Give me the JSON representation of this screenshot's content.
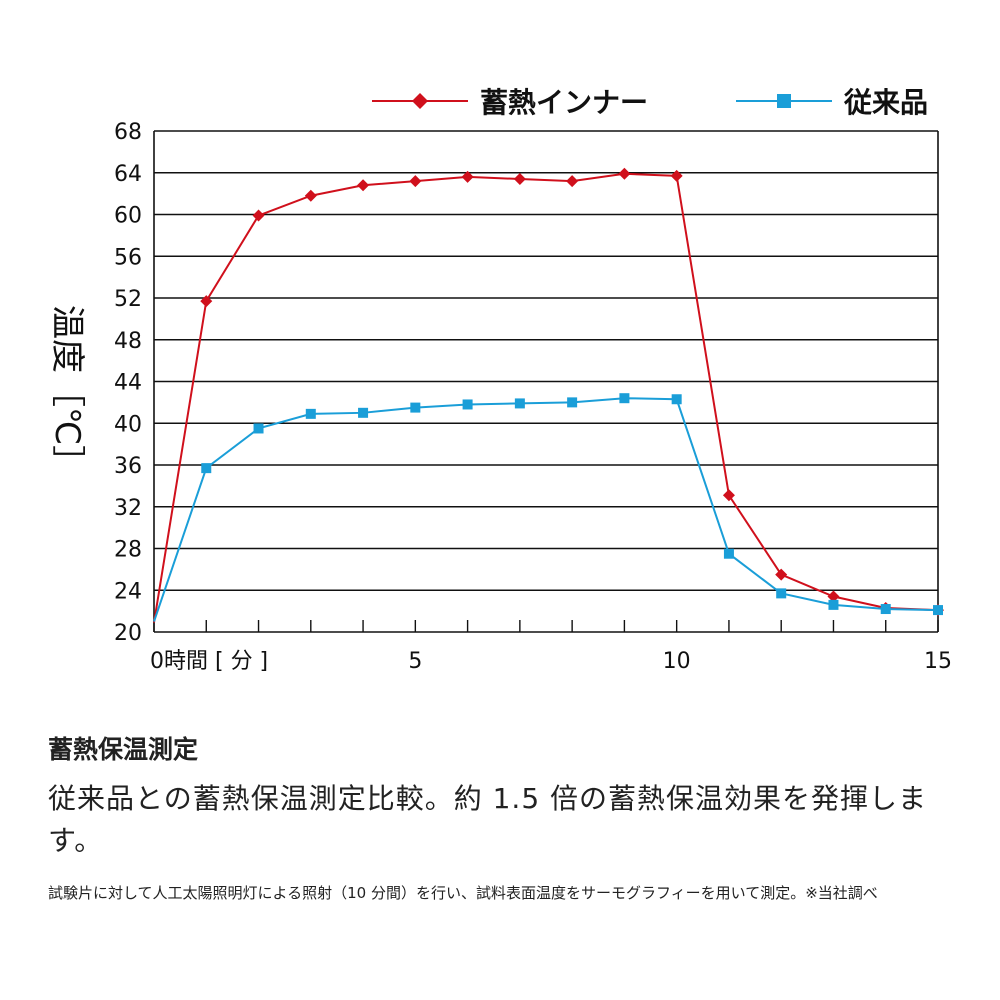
{
  "chart_data": {
    "type": "line",
    "title": "",
    "ylabel": "温度［℃］",
    "xlabel": "[ 分 ]",
    "x_first_label": "0時間 [ 分 ]",
    "xlim": [
      0,
      15
    ],
    "ylim": [
      20,
      68
    ],
    "yticks": [
      20,
      24,
      28,
      32,
      36,
      40,
      44,
      48,
      52,
      56,
      60,
      64,
      68
    ],
    "xticks_labeled": [
      5,
      10,
      15
    ],
    "grid": "horizontal",
    "legend_position": "top-right",
    "x": [
      0,
      1,
      2,
      3,
      4,
      5,
      6,
      7,
      8,
      9,
      10,
      11,
      12,
      13,
      14,
      15
    ],
    "series": [
      {
        "name": "蓄熱インナー",
        "color": "#d0101c",
        "marker": "diamond",
        "values": [
          20.9,
          51.7,
          59.9,
          61.8,
          62.8,
          63.2,
          63.6,
          63.4,
          63.2,
          63.9,
          63.7,
          33.1,
          25.5,
          23.4,
          22.3,
          22.1
        ]
      },
      {
        "name": "従来品",
        "color": "#1a9ed8",
        "marker": "square",
        "values": [
          21.0,
          35.7,
          39.5,
          40.9,
          41.0,
          41.5,
          41.8,
          41.9,
          42.0,
          42.4,
          42.3,
          27.5,
          23.7,
          22.6,
          22.2,
          22.1
        ]
      }
    ]
  },
  "text": {
    "heading": "蓄熱保温測定",
    "body": "従来品との蓄熱保温測定比較。約 1.5 倍の蓄熱保温効果を発揮します。",
    "note": "試験片に対して人工太陽照明灯による照射（10 分間）を行い、試料表面温度をサーモグラフィーを用いて測定。※当社調べ"
  }
}
